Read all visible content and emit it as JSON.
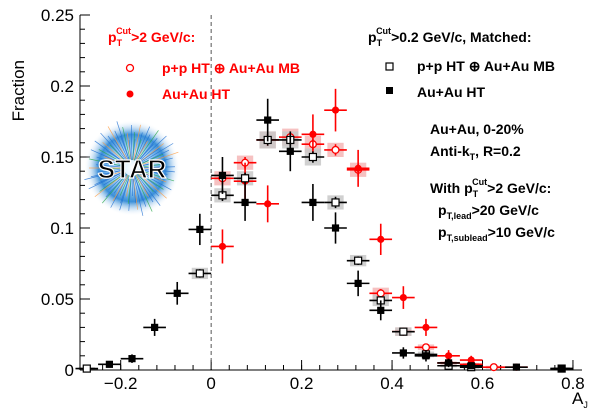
{
  "chart_data": {
    "type": "scatter",
    "title": "",
    "xlabel": "A_J",
    "ylabel": "Fraction",
    "xlim": [
      -0.29,
      0.82
    ],
    "ylim": [
      0,
      0.25
    ],
    "x_ticks": [
      -0.2,
      0,
      0.2,
      0.4,
      0.6,
      0.8
    ],
    "x_ticklabels": [
      "−0.2",
      "0",
      "0.2",
      "0.4",
      "0.6",
      "0.8"
    ],
    "y_ticks": [
      0,
      0.05,
      0.1,
      0.15,
      0.2,
      0.25
    ],
    "y_ticklabels": [
      "0",
      "0.05",
      "0.1",
      "0.15",
      "0.2",
      "0.25"
    ],
    "reference_line_x": 0,
    "grid": false,
    "legend_red": {
      "header": "p_T^Cut>2 GeV/c:",
      "header_p": "p",
      "header_sub": "T",
      "header_sup": "Cut",
      "header_rest": ">2 GeV/c:",
      "items": [
        "p+p HT ⊕ Au+Au MB",
        "Au+Au HT"
      ]
    },
    "legend_black": {
      "header": "p_T^Cut>0.2 GeV/c, Matched:",
      "header_p": "p",
      "header_sub": "T",
      "header_sup": "Cut",
      "header_rest": ">0.2 GeV/c, Matched:",
      "items": [
        "p+p HT ⊕ Au+Au MB",
        "Au+Au HT"
      ]
    },
    "annotations": {
      "line1": "Au+Au, 0-20%",
      "line2_main": "Anti-k",
      "line2_sub": "T",
      "line2_rest": ", R=0.2",
      "line3_main": "With p",
      "line3_sub": "T",
      "line3_sup": "Cut",
      "line3_rest": ">2 GeV/c:",
      "line4_main": "p",
      "line4_sub": "T,lead",
      "line4_rest": ">20 GeV/c",
      "line5_main": "p",
      "line5_sub": "T,sublead",
      "line5_rest": ">10 GeV/c"
    },
    "logo_text": "STAR",
    "colors": {
      "red": "#ff0000",
      "black": "#000000",
      "red_band": "#f5b6b6",
      "grey_band": "#c8c8c8"
    },
    "series": [
      {
        "marker": "open-circle",
        "color": "#ff0000",
        "points": [
          {
            "x": 0.025,
            "y": 0.135,
            "ey": 0.004,
            "sy": 0.005
          },
          {
            "x": 0.075,
            "y": 0.146,
            "ey": 0.004,
            "sy": 0.005
          },
          {
            "x": 0.125,
            "y": 0.162,
            "ey": 0.004,
            "sy": 0.006
          },
          {
            "x": 0.175,
            "y": 0.164,
            "ey": 0.004,
            "sy": 0.006
          },
          {
            "x": 0.225,
            "y": 0.159,
            "ey": 0.004,
            "sy": 0.006
          },
          {
            "x": 0.275,
            "y": 0.155,
            "ey": 0.004,
            "sy": 0.005
          },
          {
            "x": 0.325,
            "y": 0.141,
            "ey": 0.004,
            "sy": 0.005
          },
          {
            "x": 0.375,
            "y": 0.054,
            "ey": 0.003,
            "sy": 0.004
          },
          {
            "x": 0.425,
            "y": 0.027,
            "ey": 0.002,
            "sy": 0.003
          },
          {
            "x": 0.475,
            "y": 0.016,
            "ey": 0.002,
            "sy": 0.002
          },
          {
            "x": 0.525,
            "y": 0.005,
            "ey": 0.001,
            "sy": 0.001
          },
          {
            "x": 0.575,
            "y": 0.004,
            "ey": 0.001,
            "sy": 0.001
          },
          {
            "x": 0.625,
            "y": 0.002,
            "ey": 0.001,
            "sy": 0.001
          }
        ]
      },
      {
        "marker": "filled-circle",
        "color": "#ff0000",
        "points": [
          {
            "x": 0.025,
            "y": 0.087,
            "ey": 0.012
          },
          {
            "x": 0.075,
            "y": 0.133,
            "ey": 0.013
          },
          {
            "x": 0.125,
            "y": 0.117,
            "ey": 0.013
          },
          {
            "x": 0.225,
            "y": 0.166,
            "ey": 0.014
          },
          {
            "x": 0.275,
            "y": 0.183,
            "ey": 0.015
          },
          {
            "x": 0.325,
            "y": 0.142,
            "ey": 0.013
          },
          {
            "x": 0.375,
            "y": 0.092,
            "ey": 0.011
          },
          {
            "x": 0.425,
            "y": 0.051,
            "ey": 0.008
          },
          {
            "x": 0.475,
            "y": 0.03,
            "ey": 0.006
          },
          {
            "x": 0.525,
            "y": 0.01,
            "ey": 0.004
          },
          {
            "x": 0.575,
            "y": 0.007,
            "ey": 0.003
          },
          {
            "x": 0.675,
            "y": 0.002,
            "ey": 0.002
          }
        ]
      },
      {
        "marker": "open-square",
        "color": "#000000",
        "points": [
          {
            "x": -0.275,
            "y": 0.001,
            "ey": 0.001,
            "sy": 0.001
          },
          {
            "x": -0.025,
            "y": 0.068,
            "ey": 0.003,
            "sy": 0.004
          },
          {
            "x": 0.025,
            "y": 0.123,
            "ey": 0.004,
            "sy": 0.005
          },
          {
            "x": 0.075,
            "y": 0.135,
            "ey": 0.004,
            "sy": 0.005
          },
          {
            "x": 0.125,
            "y": 0.162,
            "ey": 0.004,
            "sy": 0.006
          },
          {
            "x": 0.175,
            "y": 0.162,
            "ey": 0.004,
            "sy": 0.006
          },
          {
            "x": 0.225,
            "y": 0.15,
            "ey": 0.004,
            "sy": 0.006
          },
          {
            "x": 0.275,
            "y": 0.118,
            "ey": 0.004,
            "sy": 0.005
          },
          {
            "x": 0.325,
            "y": 0.077,
            "ey": 0.003,
            "sy": 0.004
          },
          {
            "x": 0.375,
            "y": 0.049,
            "ey": 0.003,
            "sy": 0.004
          },
          {
            "x": 0.425,
            "y": 0.027,
            "ey": 0.002,
            "sy": 0.003
          },
          {
            "x": 0.475,
            "y": 0.011,
            "ey": 0.002,
            "sy": 0.002
          },
          {
            "x": 0.525,
            "y": 0.003,
            "ey": 0.001,
            "sy": 0.001
          },
          {
            "x": 0.575,
            "y": 0.002,
            "ey": 0.001,
            "sy": 0.001
          },
          {
            "x": 0.775,
            "y": 0.001,
            "ey": 0.001,
            "sy": 0.001
          }
        ]
      },
      {
        "marker": "filled-square",
        "color": "#000000",
        "points": [
          {
            "x": -0.225,
            "y": 0.004,
            "ey": 0.002
          },
          {
            "x": -0.175,
            "y": 0.008,
            "ey": 0.003
          },
          {
            "x": -0.125,
            "y": 0.03,
            "ey": 0.006
          },
          {
            "x": -0.075,
            "y": 0.054,
            "ey": 0.008
          },
          {
            "x": -0.025,
            "y": 0.099,
            "ey": 0.011
          },
          {
            "x": 0.025,
            "y": 0.137,
            "ey": 0.013
          },
          {
            "x": 0.075,
            "y": 0.118,
            "ey": 0.013
          },
          {
            "x": 0.125,
            "y": 0.176,
            "ey": 0.015
          },
          {
            "x": 0.175,
            "y": 0.154,
            "ey": 0.014
          },
          {
            "x": 0.225,
            "y": 0.118,
            "ey": 0.013
          },
          {
            "x": 0.275,
            "y": 0.1,
            "ey": 0.011
          },
          {
            "x": 0.325,
            "y": 0.061,
            "ey": 0.009
          },
          {
            "x": 0.375,
            "y": 0.042,
            "ey": 0.007
          },
          {
            "x": 0.425,
            "y": 0.012,
            "ey": 0.004
          },
          {
            "x": 0.475,
            "y": 0.01,
            "ey": 0.004
          },
          {
            "x": 0.525,
            "y": 0.005,
            "ey": 0.003
          },
          {
            "x": 0.575,
            "y": 0.003,
            "ey": 0.002
          },
          {
            "x": 0.675,
            "y": 0.002,
            "ey": 0.002
          },
          {
            "x": 0.775,
            "y": 0.001,
            "ey": 0.001
          }
        ]
      }
    ]
  }
}
